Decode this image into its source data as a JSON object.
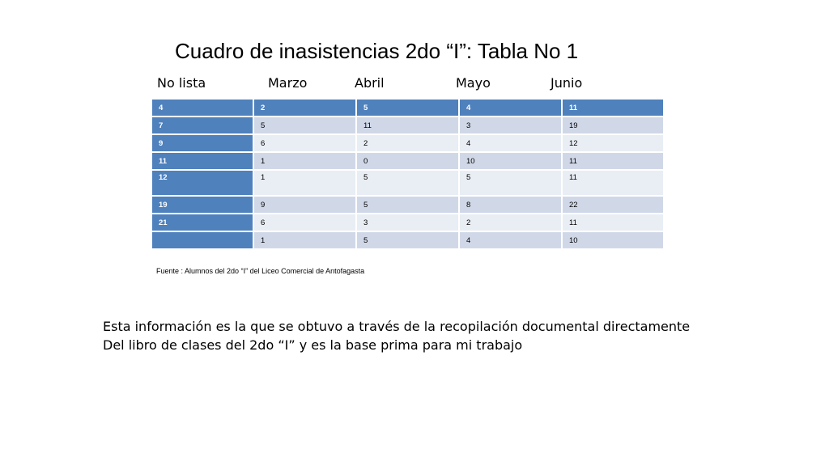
{
  "slide": {
    "title": "Cuadro de inasistencias 2do “I”: Tabla No 1",
    "column_headers": [
      "No lista",
      "Marzo",
      "Abril",
      "Mayo",
      "Junio"
    ],
    "table": {
      "rows": [
        [
          " 4",
          "2",
          " 5",
          " 4",
          " 11"
        ],
        [
          " 7",
          "5",
          "11",
          "3",
          "19"
        ],
        [
          " 9",
          "6",
          " 2",
          "4",
          "12"
        ],
        [
          "11",
          "1",
          "0",
          "10",
          "11"
        ],
        [
          "12",
          "1",
          "5",
          " 5",
          "11"
        ],
        [
          "19",
          "9",
          "5",
          "8",
          "22"
        ],
        [
          "21",
          "6",
          "3",
          "2",
          "11"
        ],
        [
          "",
          "1",
          "5",
          "4",
          "10"
        ]
      ]
    },
    "source": "Fuente : Alumnos del 2do “I” del Liceo Comercial de Antofagasta",
    "body": [
      "Esta información es la que se obtuvo a través de la recopilación documental directamente",
      "Del libro de clases del 2do “I” y es la base prima para mi trabajo"
    ]
  },
  "colors": {
    "header_fill": "#4f81bd",
    "row_dark": "#d0d8e8",
    "row_light": "#e9edf4"
  }
}
